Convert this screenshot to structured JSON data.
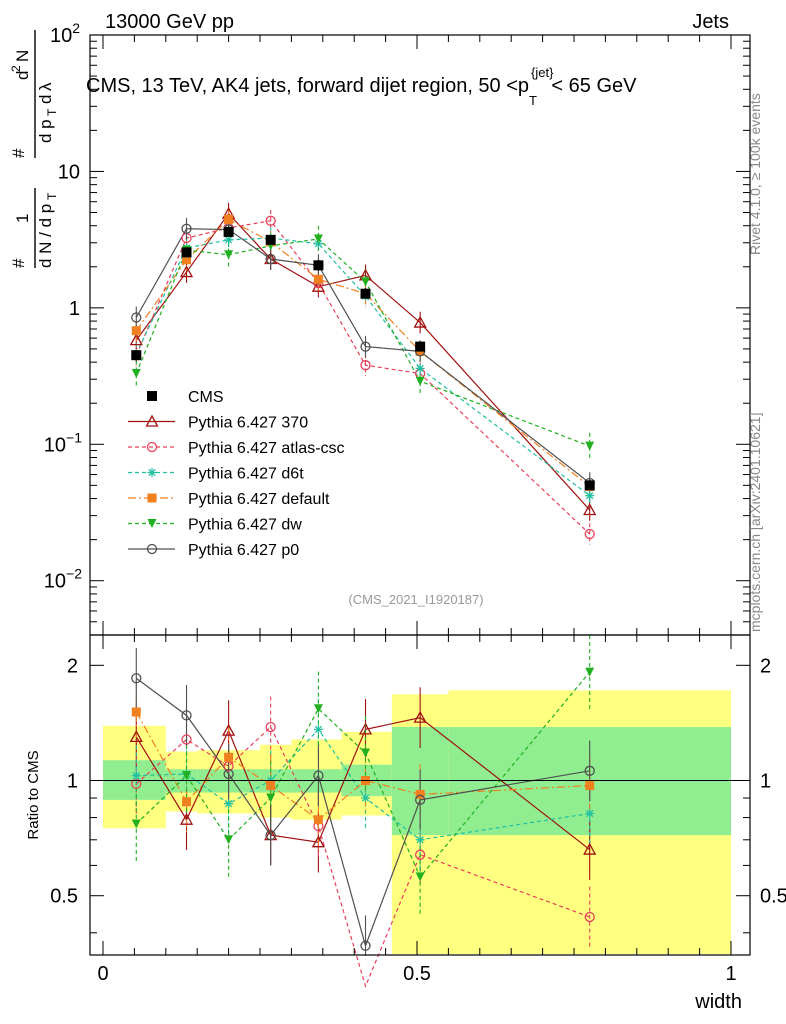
{
  "header": {
    "left": "13000 GeV pp",
    "right": "Jets",
    "subtitle": "CMS, 13 TeV, AK4 jets, forward dijet region, 50 <p",
    "subtitle_sup": "{jet}",
    "subtitle_sub": "T",
    "subtitle_end": "< 65 GeV",
    "watermark": "(CMS_2021_I1920187)",
    "side_right_top": "Rivet 4.1.0, ≥ 100k events",
    "side_right_bottom": "mcplots.cern.ch [arXiv:2401.10621]"
  },
  "chart_data": {
    "type": "line",
    "title": "CMS, 13 TeV, AK4 jets, forward dijet region, 50 < p_T^{jet} < 65 GeV",
    "xlabel": "width",
    "ylabel": "1/dN/dp_T  d^2N/dp_T dlambda",
    "ratio_ylabel": "Ratio to CMS",
    "xlim": [
      0,
      1
    ],
    "ylim": [
      0.004,
      100
    ],
    "ratio_ylim": [
      0.35,
      2.4
    ],
    "yscale": "log",
    "x_ticks": [
      "0",
      "0.5",
      "1"
    ],
    "y_ticks": [
      {
        "v": 100,
        "base": "10",
        "exp": "2"
      },
      {
        "v": 10,
        "base": "10",
        "exp": ""
      },
      {
        "v": 1,
        "base": "1",
        "exp": ""
      },
      {
        "v": 0.1,
        "base": "10",
        "exp": "−1"
      },
      {
        "v": 0.01,
        "base": "10",
        "exp": "−2"
      }
    ],
    "ratio_ticks": [
      "0.5",
      "1",
      "2"
    ],
    "bin_edges": [
      0.0,
      0.1,
      0.15,
      0.25,
      0.3,
      0.38,
      0.46,
      0.55,
      1.0
    ],
    "x": [
      0.053,
      0.133,
      0.2,
      0.267,
      0.343,
      0.418,
      0.505,
      0.775
    ],
    "band_inner": [
      [
        0.89,
        1.13
      ],
      [
        0.93,
        1.07
      ],
      [
        0.93,
        1.07
      ],
      [
        0.93,
        1.07
      ],
      [
        0.93,
        1.07
      ],
      [
        0.91,
        1.1
      ],
      [
        0.72,
        1.38
      ],
      [
        0.72,
        1.38
      ]
    ],
    "band_outer": [
      [
        0.75,
        1.39
      ],
      [
        0.83,
        1.19
      ],
      [
        0.82,
        1.2
      ],
      [
        0.8,
        1.24
      ],
      [
        0.79,
        1.28
      ],
      [
        0.81,
        1.34
      ],
      [
        0.2,
        1.68
      ],
      [
        0.2,
        1.72
      ]
    ],
    "series": [
      {
        "name": "CMS",
        "values": [
          0.45,
          2.55,
          3.6,
          3.15,
          2.05,
          1.27,
          0.52,
          0.05
        ],
        "ratio": [
          1,
          1,
          1,
          1,
          1,
          1,
          1,
          1
        ],
        "color": "#000000",
        "marker": "square-filled",
        "dash": "none",
        "err": 0.1
      },
      {
        "name": "Pythia 6.427 370",
        "values": [
          0.58,
          1.83,
          4.9,
          2.28,
          1.43,
          1.73,
          0.78,
          0.033
        ],
        "ratio": [
          1.3,
          0.79,
          1.35,
          0.72,
          0.69,
          1.36,
          1.46,
          0.66
        ],
        "color": "#a01010",
        "marker": "triangle-open",
        "dash": "none",
        "err": 0.2
      },
      {
        "name": "Pythia 6.427 atlas-csc",
        "values": [
          0.45,
          3.25,
          3.85,
          4.35,
          1.52,
          0.38,
          0.33,
          0.022
        ],
        "ratio": [
          0.98,
          1.28,
          1.09,
          1.38,
          0.76,
          0.29,
          0.64,
          0.44
        ],
        "color": "#e8405a",
        "marker": "circle-open",
        "dash": "4,3",
        "err": 0.2
      },
      {
        "name": "Pythia 6.427 d6t",
        "values": [
          0.46,
          2.75,
          3.15,
          3.25,
          2.95,
          1.22,
          0.36,
          0.042
        ],
        "ratio": [
          1.03,
          1.04,
          0.87,
          1.0,
          1.36,
          0.9,
          0.7,
          0.82
        ],
        "color": "#20c0a0",
        "marker": "star",
        "dash": "4,3",
        "err": 0.2
      },
      {
        "name": "Pythia 6.427 default",
        "values": [
          0.68,
          2.25,
          4.45,
          3.05,
          1.62,
          1.27,
          0.48,
          0.049
        ],
        "ratio": [
          1.51,
          0.88,
          1.15,
          0.97,
          0.79,
          1.0,
          0.92,
          0.97
        ],
        "color": "#f08020",
        "marker": "square-filled",
        "dash": "8,3,2,3",
        "err": 0.2
      },
      {
        "name": "Pythia 6.427 dw",
        "values": [
          0.33,
          2.65,
          2.45,
          2.85,
          3.2,
          1.55,
          0.29,
          0.097
        ],
        "ratio": [
          0.77,
          1.03,
          0.7,
          0.9,
          1.54,
          1.18,
          0.56,
          1.92
        ],
        "color": "#20b020",
        "marker": "triangle-down",
        "dash": "4,3",
        "err": 0.25
      },
      {
        "name": "Pythia 6.427 p0",
        "values": [
          0.85,
          3.8,
          3.75,
          2.28,
          2.05,
          0.52,
          0.48,
          0.052
        ],
        "ratio": [
          1.85,
          1.48,
          1.04,
          0.72,
          1.03,
          0.37,
          0.89,
          1.06
        ],
        "color": "#505050",
        "marker": "circle-open",
        "dash": "none",
        "err": 0.2
      }
    ]
  }
}
